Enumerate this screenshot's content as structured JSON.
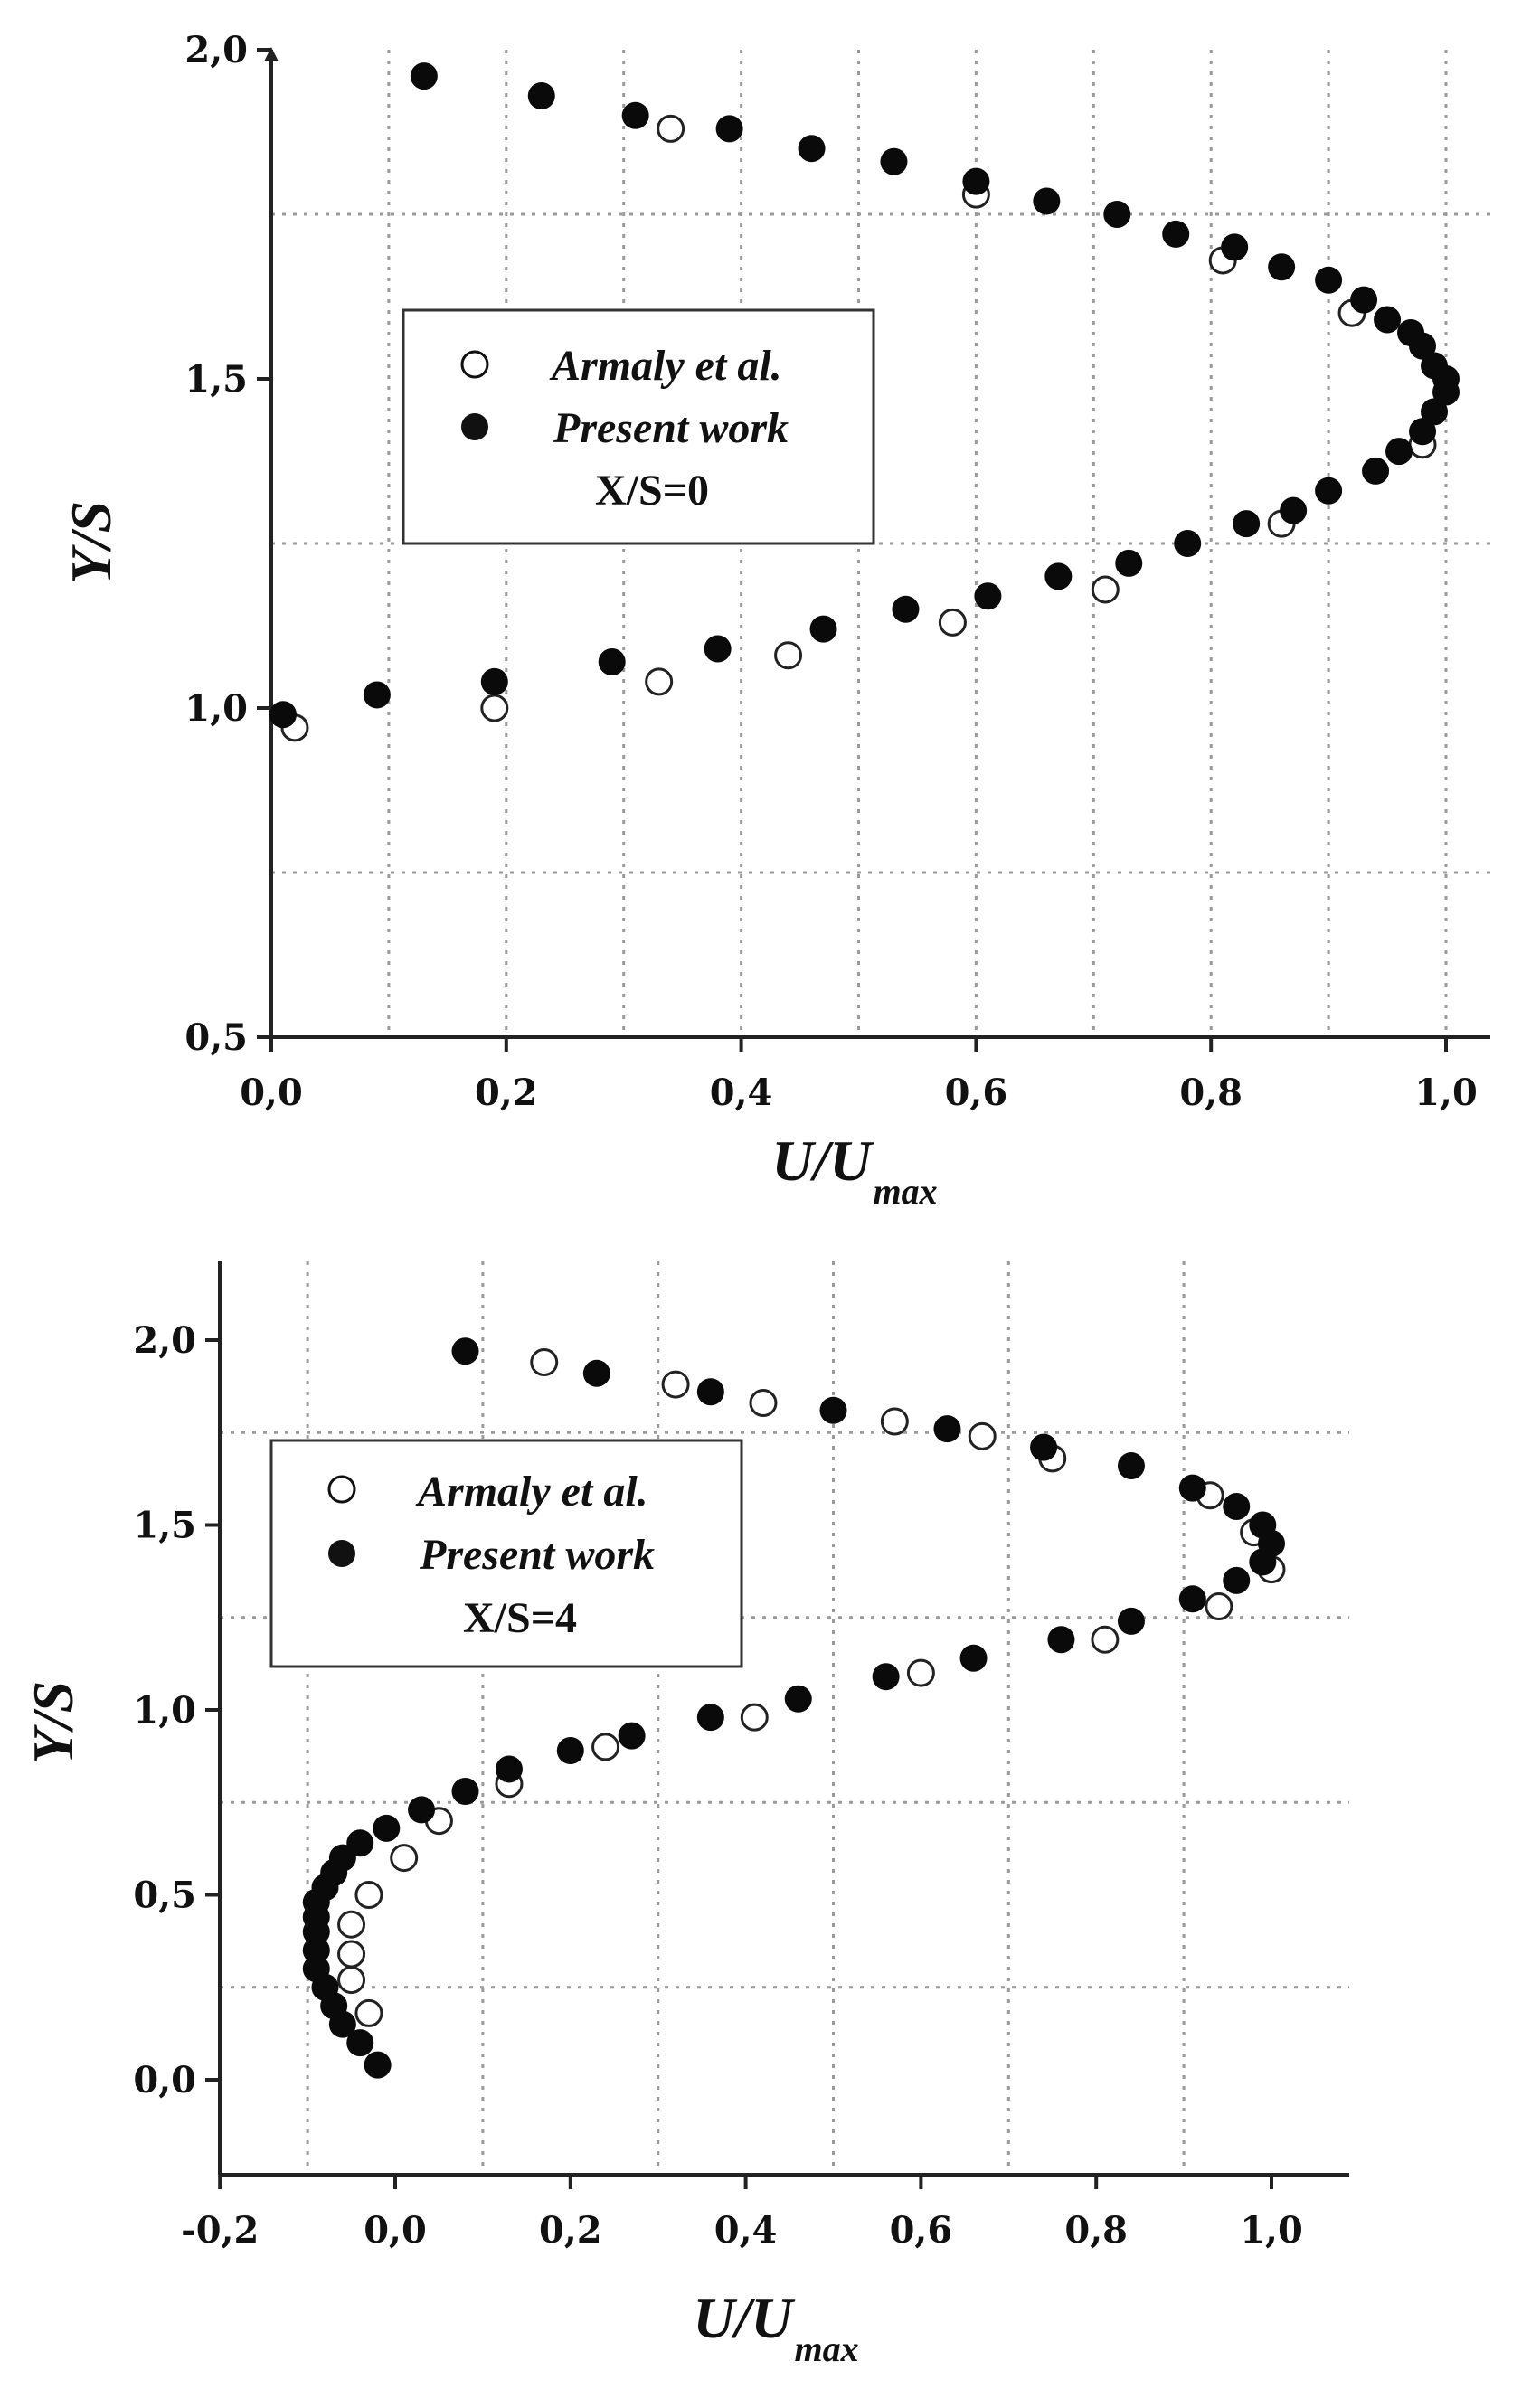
{
  "chart_data": [
    {
      "type": "scatter",
      "xlabel": "U/U",
      "xlabel_sub": "max",
      "ylabel": "Y/S",
      "xlim": [
        0.0,
        1.05
      ],
      "ylim": [
        0.5,
        2.0
      ],
      "xticks": [
        "0,0",
        "0,2",
        "0,4",
        "0,6",
        "0,8",
        "1,0"
      ],
      "xtick_values": [
        0.0,
        0.2,
        0.4,
        0.6,
        0.8,
        1.0
      ],
      "yticks": [
        "0,5",
        "1,0",
        "1,5",
        "2,0"
      ],
      "ytick_values": [
        0.5,
        1.0,
        1.5,
        2.0
      ],
      "grid_x": [
        0.1,
        0.2,
        0.3,
        0.4,
        0.5,
        0.6,
        0.7,
        0.8,
        0.9,
        1.0
      ],
      "grid_y": [
        0.75,
        1.25,
        1.75
      ],
      "grid": true,
      "legend_position": "middle-left",
      "annotation": "X/S=0",
      "series": [
        {
          "name": "Armaly et al.",
          "marker": "open-circle",
          "x": [
            0.02,
            0.19,
            0.33,
            0.44,
            0.58,
            0.71,
            0.86,
            0.98,
            0.92,
            0.81,
            0.6,
            0.34
          ],
          "y": [
            0.97,
            1.0,
            1.04,
            1.08,
            1.13,
            1.18,
            1.28,
            1.4,
            1.6,
            1.68,
            1.78,
            1.88
          ]
        },
        {
          "name": "Present work",
          "marker": "filled-circle",
          "x": [
            0.01,
            0.09,
            0.19,
            0.29,
            0.38,
            0.47,
            0.54,
            0.61,
            0.67,
            0.73,
            0.78,
            0.83,
            0.87,
            0.9,
            0.94,
            0.96,
            0.98,
            0.99,
            1.0,
            1.0,
            0.99,
            0.98,
            0.97,
            0.95,
            0.93,
            0.9,
            0.86,
            0.82,
            0.77,
            0.72,
            0.66,
            0.6,
            0.53,
            0.46,
            0.39,
            0.31,
            0.23,
            0.13
          ],
          "y": [
            0.99,
            1.02,
            1.04,
            1.07,
            1.09,
            1.12,
            1.15,
            1.17,
            1.2,
            1.22,
            1.25,
            1.28,
            1.3,
            1.33,
            1.36,
            1.39,
            1.42,
            1.45,
            1.48,
            1.5,
            1.52,
            1.55,
            1.57,
            1.59,
            1.62,
            1.65,
            1.67,
            1.7,
            1.72,
            1.75,
            1.77,
            1.8,
            1.83,
            1.85,
            1.88,
            1.9,
            1.93,
            1.96
          ]
        }
      ]
    },
    {
      "type": "scatter",
      "xlabel": "U/U",
      "xlabel_sub": "max",
      "ylabel": "Y/S",
      "xlim": [
        -0.2,
        1.1
      ],
      "ylim": [
        -0.25,
        2.2
      ],
      "xticks": [
        "-0,2",
        "0,0",
        "0,2",
        "0,4",
        "0,6",
        "0,8",
        "1,0"
      ],
      "xtick_values": [
        -0.2,
        0.0,
        0.2,
        0.4,
        0.6,
        0.8,
        1.0
      ],
      "yticks": [
        "0,0",
        "0,5",
        "1,0",
        "1,5",
        "2,0"
      ],
      "ytick_values": [
        0.0,
        0.5,
        1.0,
        1.5,
        2.0
      ],
      "grid_x": [
        -0.1,
        0.1,
        0.3,
        0.5,
        0.7,
        0.9
      ],
      "grid_y": [
        0.25,
        0.75,
        1.25,
        1.75
      ],
      "grid": true,
      "legend_position": "upper-left",
      "annotation": "X/S=4",
      "series": [
        {
          "name": "Armaly et al.",
          "marker": "open-circle",
          "x": [
            -0.03,
            -0.05,
            -0.05,
            -0.05,
            -0.03,
            0.01,
            0.05,
            0.13,
            0.24,
            0.41,
            0.6,
            0.81,
            0.94,
            1.0,
            0.98,
            0.93,
            0.75,
            0.67,
            0.57,
            0.42,
            0.32,
            0.17
          ],
          "y": [
            0.18,
            0.27,
            0.34,
            0.42,
            0.5,
            0.6,
            0.7,
            0.8,
            0.9,
            0.98,
            1.1,
            1.19,
            1.28,
            1.38,
            1.48,
            1.58,
            1.68,
            1.74,
            1.78,
            1.83,
            1.88,
            1.94
          ]
        },
        {
          "name": "Present work",
          "marker": "filled-circle",
          "x": [
            -0.02,
            -0.04,
            -0.06,
            -0.07,
            -0.08,
            -0.09,
            -0.09,
            -0.09,
            -0.09,
            -0.09,
            -0.08,
            -0.07,
            -0.06,
            -0.04,
            -0.01,
            0.03,
            0.08,
            0.13,
            0.2,
            0.27,
            0.36,
            0.46,
            0.56,
            0.66,
            0.76,
            0.84,
            0.91,
            0.96,
            0.99,
            1.0,
            0.99,
            0.96,
            0.91,
            0.84,
            0.74,
            0.63,
            0.5,
            0.36,
            0.23,
            0.08
          ],
          "y": [
            0.04,
            0.1,
            0.15,
            0.2,
            0.25,
            0.3,
            0.35,
            0.4,
            0.44,
            0.48,
            0.52,
            0.56,
            0.6,
            0.64,
            0.68,
            0.73,
            0.78,
            0.84,
            0.89,
            0.93,
            0.98,
            1.03,
            1.09,
            1.14,
            1.19,
            1.24,
            1.3,
            1.35,
            1.4,
            1.45,
            1.5,
            1.55,
            1.6,
            1.66,
            1.71,
            1.76,
            1.81,
            1.86,
            1.91,
            1.97
          ]
        }
      ]
    }
  ]
}
